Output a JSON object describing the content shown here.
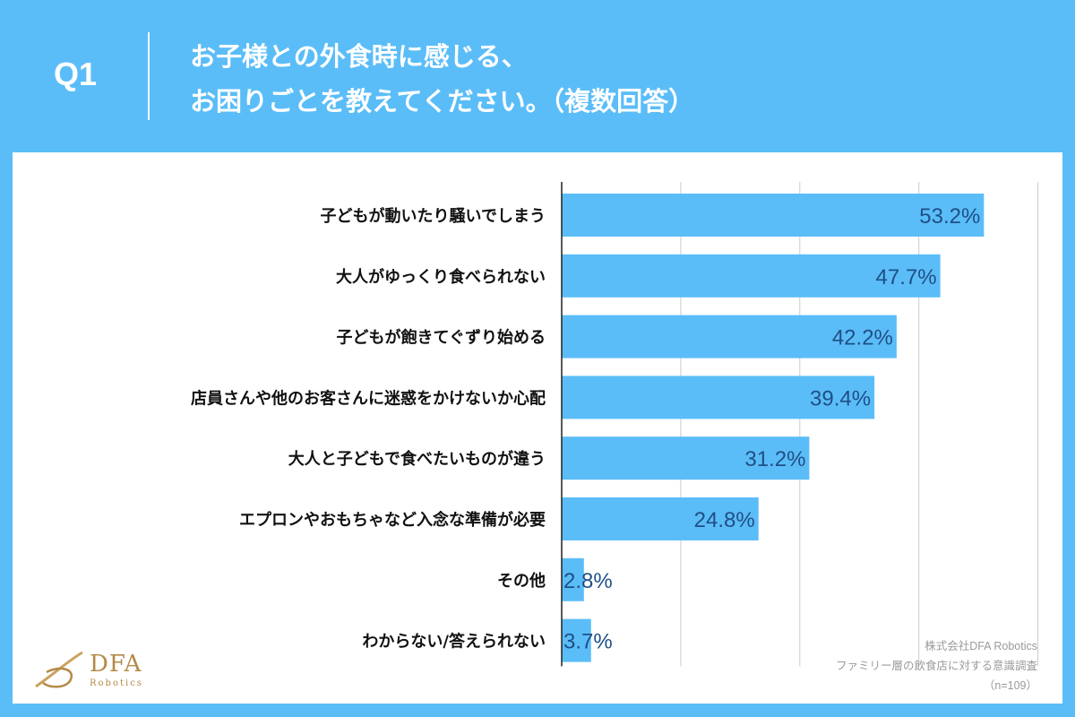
{
  "header": {
    "q_label": "Q1",
    "question_line1": "お子様との外食時に感じる、",
    "question_line2": "お困りごとを教えてください。（複数回答）"
  },
  "logo": {
    "name": "DFA",
    "sub": "Robotics"
  },
  "source": {
    "company": "株式会社DFA Robotics",
    "survey": "ファミリー層の飲食店に対する意識調査",
    "sample": "（n=109）"
  },
  "colors": {
    "background": "#5bbdf8",
    "bar": "#5bbdf8",
    "value_text": "#1f4f86",
    "label_text": "#111111",
    "grid": "#cccccc"
  },
  "chart_data": {
    "type": "bar",
    "orientation": "horizontal",
    "categories": [
      "子どもが動いたり騒いでしまう",
      "大人がゆっくり食べられない",
      "子どもが飽きてぐずり始める",
      "店員さんや他のお客さんに迷惑をかけないか心配",
      "大人と子どもで食べたいものが違う",
      "エプロンやおもちゃなど入念な準備が必要",
      "その他",
      "わからない/答えられない"
    ],
    "values": [
      53.2,
      47.7,
      42.2,
      39.4,
      31.2,
      24.8,
      2.8,
      3.7
    ],
    "value_labels": [
      "53.2%",
      "47.7%",
      "42.2%",
      "39.4%",
      "31.2%",
      "24.8%",
      "2.8%",
      "3.7%"
    ],
    "xlim": [
      0,
      60
    ],
    "grid": true,
    "unit": "%"
  }
}
